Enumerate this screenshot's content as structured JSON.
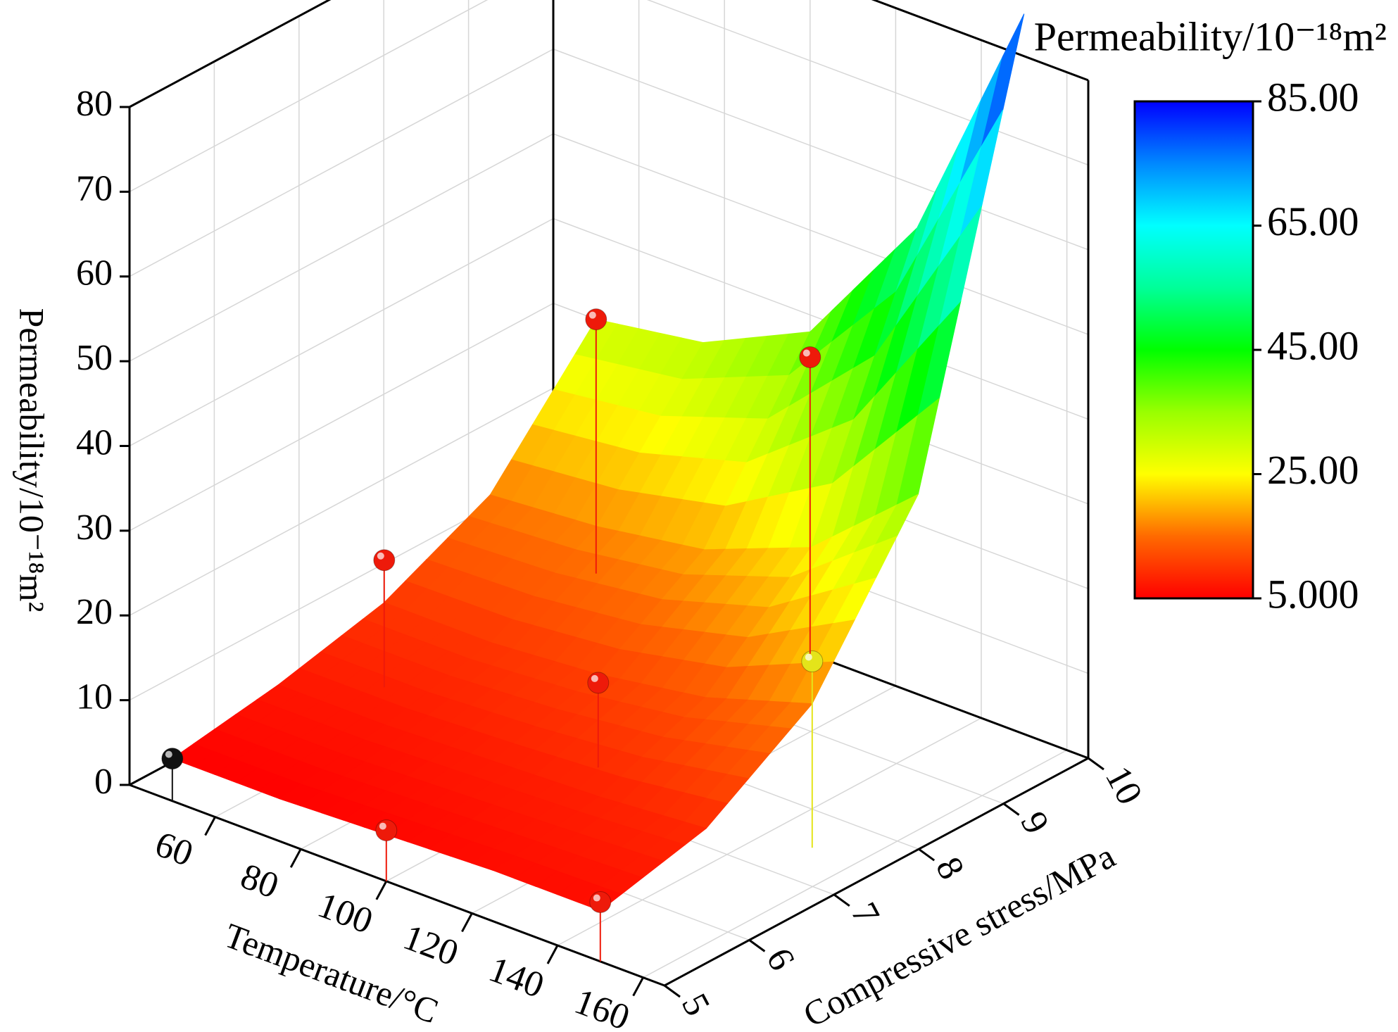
{
  "chart_data": {
    "type": "surface3d",
    "x_label": "Temperature/°C",
    "y_label": "Compressive stress/MPa",
    "z_label": "Permeability/10⁻¹⁸m²",
    "colorbar_label": "Permeability/10⁻¹⁸m²",
    "xlim": [
      40,
      165
    ],
    "xticks": [
      60,
      80,
      100,
      120,
      140,
      160
    ],
    "ylim": [
      5,
      10
    ],
    "yticks": [
      5,
      6,
      7,
      8,
      9,
      10
    ],
    "zlim": [
      0,
      80
    ],
    "zticks": [
      0,
      10,
      20,
      30,
      40,
      50,
      60,
      70,
      80
    ],
    "clim": [
      5,
      85
    ],
    "cticks": [
      {
        "value": 5,
        "label": "5.000"
      },
      {
        "value": 25,
        "label": "25.00"
      },
      {
        "value": 45,
        "label": "45.00"
      },
      {
        "value": 65,
        "label": "65.00"
      },
      {
        "value": 85,
        "label": "85.00"
      }
    ],
    "colormap": [
      "#ff0000",
      "#ff6a00",
      "#ffff00",
      "#99ff00",
      "#00ff00",
      "#00ff99",
      "#00ffff",
      "#0088ff",
      "#0000ff"
    ],
    "grid": true,
    "surface": {
      "x": [
        50,
        75,
        100,
        125,
        150
      ],
      "y": [
        5,
        6.25,
        7.5,
        8.75,
        10
      ],
      "z": [
        [
          5,
          7,
          10,
          16,
          30
        ],
        [
          5,
          7,
          10,
          17,
          32
        ],
        [
          5.5,
          7.5,
          11,
          19,
          38
        ],
        [
          6,
          8,
          13,
          24,
          55
        ],
        [
          6,
          9,
          17,
          35,
          85
        ]
      ]
    },
    "points": {
      "x": [
        50,
        100,
        150,
        50,
        100,
        150,
        50,
        100
      ],
      "y": [
        5,
        5,
        5,
        7.5,
        7.5,
        7.5,
        10,
        10
      ],
      "z": [
        5,
        6,
        7,
        15,
        10,
        22,
        30,
        35
      ],
      "colors": [
        "#111111",
        "#ee1a0a",
        "#ee1a0a",
        "#ee1a0a",
        "#ee1a0a",
        "#e4e41a",
        "#ee1a0a",
        "#ee1a0a"
      ]
    }
  }
}
